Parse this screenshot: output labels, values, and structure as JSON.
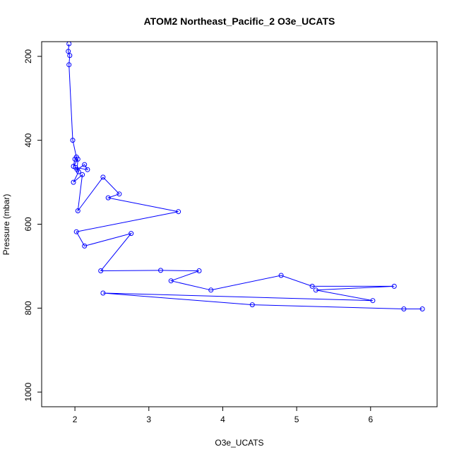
{
  "chart_data": {
    "type": "line",
    "title": "ATOM2 Northeast_Pacific_2 O3e_UCATS",
    "xlabel": "O3e_UCATS",
    "ylabel": "Pressure (mbar)",
    "xlim": [
      1.55,
      6.9
    ],
    "ylim": [
      1035,
      165
    ],
    "y_reversed": true,
    "x_ticks": [
      2,
      3,
      4,
      5,
      6
    ],
    "y_ticks": [
      200,
      400,
      600,
      800,
      1000
    ],
    "grid": false,
    "legend": "none",
    "series": [
      {
        "color": "#0000ff",
        "x": [
          1.92,
          1.91,
          1.93,
          1.92,
          1.97,
          2.02,
          2.0,
          1.98,
          2.04,
          2.03,
          2.13,
          2.17,
          2.01,
          2.05,
          1.98,
          2.1,
          2.04,
          2.38,
          2.6,
          2.45,
          3.4,
          2.02,
          2.13,
          2.76,
          2.35,
          3.16,
          3.68,
          3.3,
          3.84,
          4.79,
          5.21,
          6.32,
          5.26,
          6.03,
          2.38,
          4.4,
          6.45,
          6.7
        ],
        "y": [
          170,
          188,
          198,
          220,
          400,
          440,
          445,
          462,
          445,
          470,
          458,
          470,
          465,
          475,
          500,
          482,
          568,
          488,
          528,
          537,
          570,
          618,
          652,
          622,
          711,
          710,
          711,
          735,
          757,
          722,
          748,
          748,
          757,
          782,
          764,
          792,
          802,
          802
        ]
      }
    ]
  }
}
